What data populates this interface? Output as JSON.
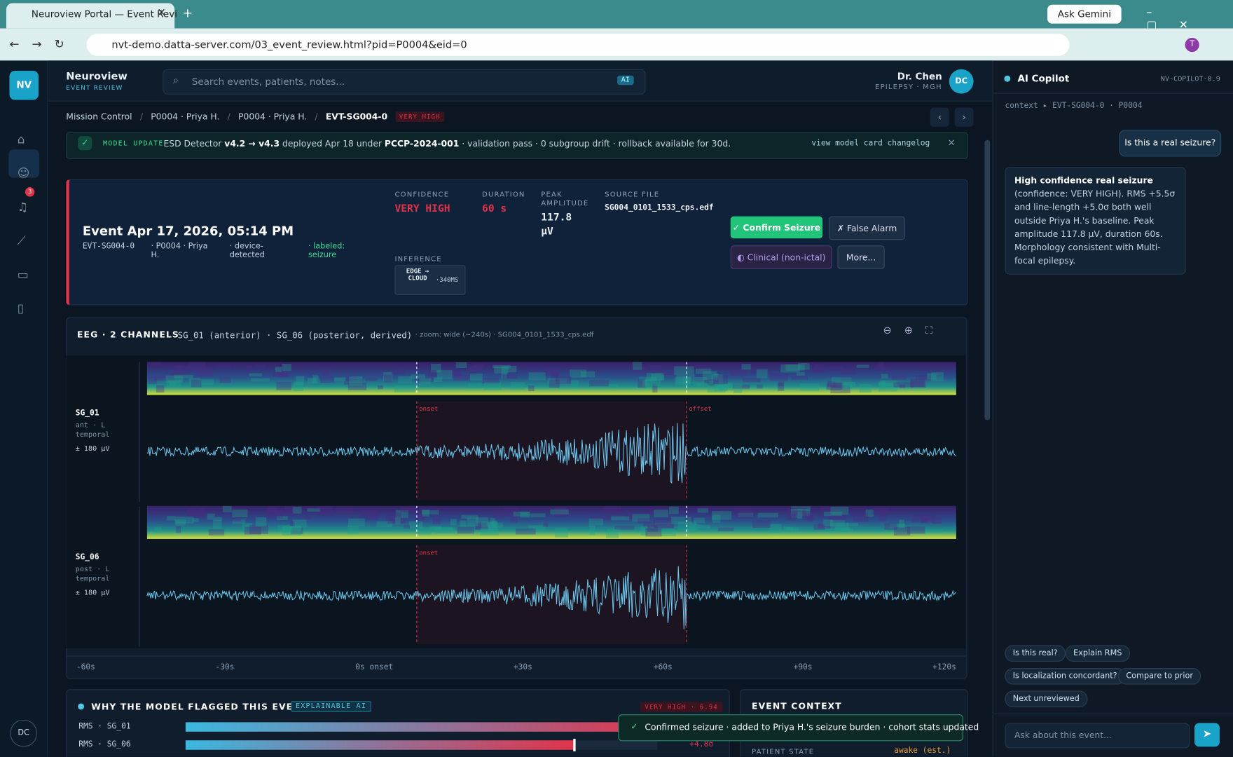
{
  "browser": {
    "tab_title": "Neuroview Portal — Event Revi",
    "url": "nvt-demo.datta-server.com/03_event_review.html?pid=P0004&eid=0",
    "ask_gemini": "Ask Gemini",
    "profile": "T"
  },
  "app": {
    "brand": "Neuroview",
    "brand_sub": "EVENT REVIEW",
    "logo": "NV",
    "search_placeholder": "Search events, patients, notes...",
    "search_badge": "AI",
    "user_name": "Dr. Chen",
    "user_sub": "EPILEPSY · MGH",
    "user_initials": "DC",
    "alert_count": "3",
    "rail_initials": "DC"
  },
  "breadcrumbs": {
    "items": [
      "Mission Control",
      "P0004 · Priya H.",
      "P0004 · Priya H."
    ],
    "current": "EVT-SG004-0",
    "badge": "VERY HIGH"
  },
  "banner": {
    "tag": "MODEL UPDATE",
    "text": [
      "ESD Detector ",
      "v4.2 → v4.3",
      " deployed Apr 18 under ",
      "PCCP-2024-001",
      " · validation pass · 0 subgroup drift · rollback available for 30d."
    ],
    "link": "view model card changelog",
    "close": "×"
  },
  "event": {
    "title": "Event Apr 17, 2026, 05:14 PM",
    "id": "EVT-SG004-0",
    "patient": "P0004 · Priya H.",
    "source": "device-detected",
    "label": "labeled: seizure",
    "metrics": [
      {
        "label": "CONFIDENCE",
        "value": "VERY HIGH"
      },
      {
        "label": "DURATION",
        "value": "60 s"
      },
      {
        "label": "PEAK AMPLITUDE",
        "value": "117.8 µV"
      },
      {
        "label": "SOURCE FILE",
        "value": "SG004_0101_1533_cps.edf"
      }
    ],
    "inference_label": "INFERENCE",
    "inference": "EDGE → CLOUD",
    "latency": "·340MS",
    "buttons": [
      "✓ Confirm Seizure",
      "✗ False Alarm",
      "◐ Clinical (non-ictal)",
      "More..."
    ]
  },
  "eeg": {
    "title": "EEG · 2 CHANNELS",
    "channels_text": "SG_01 (anterior) · SG_06 (posterior, derived)",
    "zoom": "· zoom: wide (~240s) · SG004_0101_1533_cps.edf",
    "channels": [
      {
        "name": "SG_01",
        "desc": "ant · L temporal",
        "scale": "± 180 µV",
        "markers": [
          "onset",
          "offset"
        ]
      },
      {
        "name": "SG_06",
        "desc": "post · L temporal",
        "scale": "± 180 µV",
        "markers": [
          "onset"
        ]
      }
    ],
    "time_labels": [
      "-60s",
      "-30s",
      "0s onset",
      "+30s",
      "+60s",
      "+90s",
      "+120s"
    ]
  },
  "why": {
    "title": "WHY THE MODEL FLAGGED THIS EVENT",
    "badge": "EXPLAINABLE AI",
    "score": "VERY HIGH · 0.94",
    "rows": [
      {
        "label": "RMS · SG_01"
      },
      {
        "label": "RMS · SG_06",
        "value": "+4.8σ"
      }
    ]
  },
  "context": {
    "title": "EVENT CONTEXT",
    "key": "PATIENT STATE",
    "value": "awake (est.)"
  },
  "toast": "Confirmed seizure · added to Priya H.'s seizure burden · cohort stats updated",
  "copilot": {
    "title": "AI Copilot",
    "version": "NV-COPILOT-0.9",
    "context": "context ▸ EVT-SG004-0 · P0004",
    "user_msg": "Is this a real seizure?",
    "reply_title": "High confidence real seizure",
    "reply": "(confidence: VERY HIGH). RMS +5.5σ and line-length +5.0σ both well outside Priya H.'s baseline. Peak amplitude 117.8 µV, duration 60s. Morphology consistent with Multi-focal epilepsy.",
    "suggestions": [
      "Is this real?",
      "Explain RMS",
      "Is localization concordant?",
      "Compare to prior",
      "Next unreviewed"
    ],
    "input": "Ask about this event..."
  }
}
